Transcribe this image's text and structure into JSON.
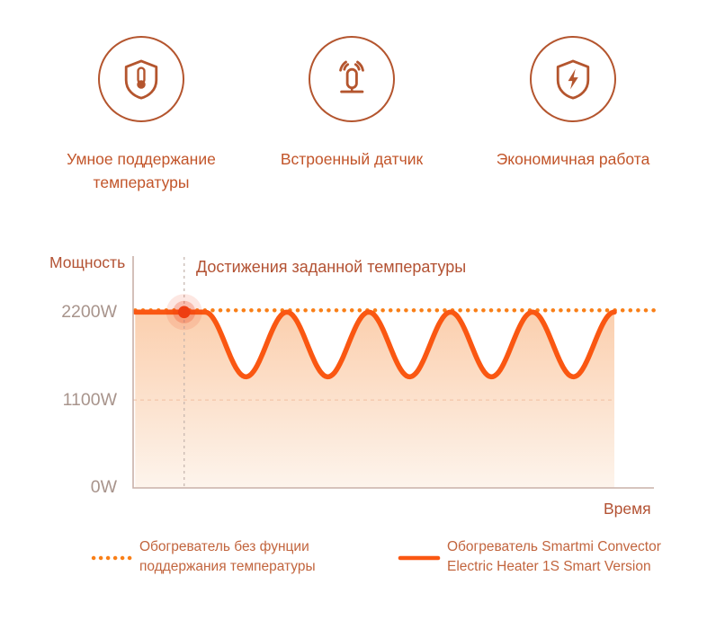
{
  "colors": {
    "accent_brown": "#b4552e",
    "label_orange": "#c2552a",
    "title_brown": "#b35233",
    "tick_gray": "#a8948c",
    "legend_text": "#c2653e",
    "axis": "#c9b0a8",
    "grid_gray": "#c4b4ad",
    "grid_pink": "#f0bfa2",
    "marker": "#ee3d12",
    "fill_top": "#fbcfae",
    "fill_bottom": "#fdf4ec"
  },
  "features": [
    {
      "icon": "shield-thermometer-icon",
      "label": "Умное поддержание\nтемпературы"
    },
    {
      "icon": "sensor-signal-icon",
      "label": "Встроенный датчик"
    },
    {
      "icon": "shield-lightning-icon",
      "label": "Экономичная работа"
    }
  ],
  "chart_data": {
    "type": "line",
    "title": "Достижения заданной температуры",
    "ylabel": "Мощность",
    "xlabel": "Время",
    "ytick_labels": [
      "2200W",
      "1100W",
      "0W"
    ],
    "ytick_values": [
      2200,
      1100,
      0
    ],
    "ylim": [
      0,
      2900
    ],
    "grid": "dashed reference lines only",
    "legend_position": "bottom",
    "gridlines": {
      "vertical_x_frac": 0.098,
      "horizontal_value": 1100
    },
    "annotation": {
      "text": "Достижения заданной температуры",
      "marker_x_frac": 0.098,
      "marker_value": 2200
    },
    "series": [
      {
        "name": "Обогреватель без фунции поддержания температуры",
        "style": "dotted",
        "color": "#f97f17",
        "behavior": "constant",
        "value": 2200,
        "x_start_frac": 0.004,
        "x_end_frac": 1.0
      },
      {
        "name": "Обогреватель Smartmi Convector Electric Heater 1S Smart Version",
        "style": "solid",
        "color": "#fa5712",
        "behavior": "flat_then_wave",
        "flat_value": 2200,
        "flat_start_frac": 0.004,
        "flat_end_frac": 0.138,
        "wave_peak": 2200,
        "wave_trough": 1390,
        "wave_cycles": 5,
        "x_end_frac": 0.924
      }
    ]
  },
  "legend": [
    {
      "swatch": "dotted",
      "label": "Обогреватель без фунции\nподдержания температуры"
    },
    {
      "swatch": "solid",
      "label": "Обогреватель Smartmi Convector\nElectric Heater 1S Smart Version"
    }
  ]
}
